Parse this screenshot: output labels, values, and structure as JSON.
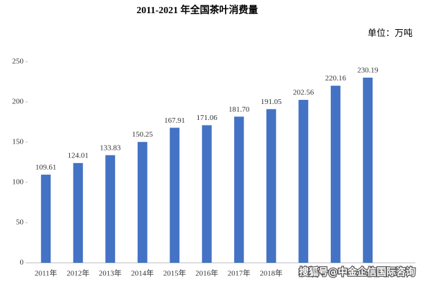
{
  "chart_data": {
    "type": "bar",
    "title": "2011-2021 年全国茶叶消费量",
    "unit": "单位：万吨",
    "categories": [
      "2011年",
      "2012年",
      "2013年",
      "2014年",
      "2015年",
      "2016年",
      "2017年",
      "2018年",
      null,
      null,
      null
    ],
    "values": [
      109.61,
      124.01,
      133.83,
      150.25,
      167.91,
      171.06,
      181.7,
      191.05,
      202.56,
      220.16,
      230.19
    ],
    "value_labels": [
      "109.61",
      "124.01",
      "133.83",
      "150.25",
      "167.91",
      "171.06",
      "181.70",
      "191.05",
      "202.56",
      "220.16",
      "230.19"
    ],
    "color": "#4472c4",
    "ylim": [
      0,
      250
    ],
    "yticks": [
      0,
      50,
      100,
      150,
      200,
      250
    ],
    "grid": false,
    "watermark": "搜狐号@中金企信国际咨询"
  }
}
